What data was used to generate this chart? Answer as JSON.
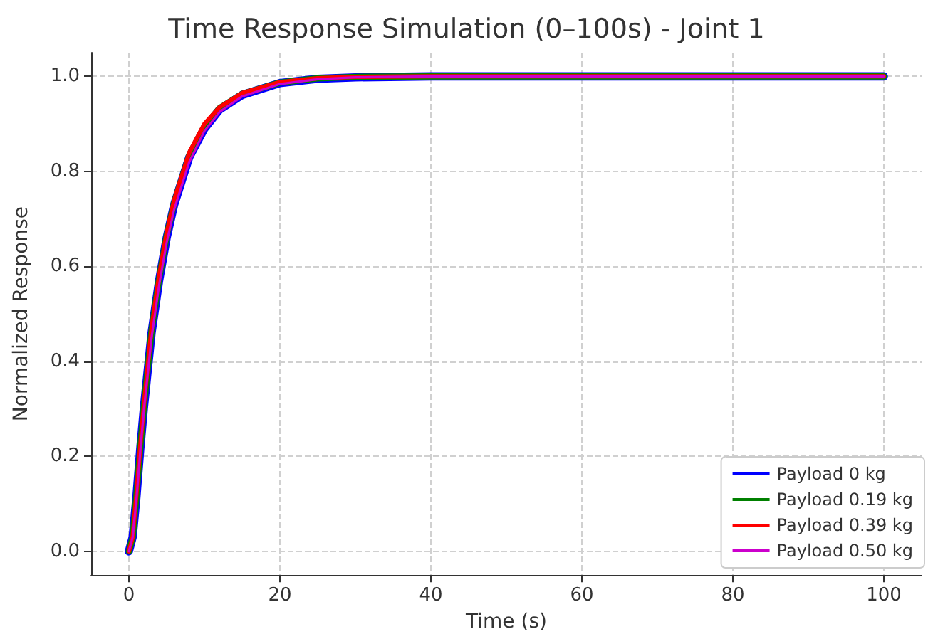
{
  "chart_data": {
    "type": "line",
    "title": "Time Response Simulation (0–100s) - Joint 1",
    "xlabel": "Time (s)",
    "ylabel": "Normalized Response",
    "x": [
      0,
      0.5,
      1,
      1.5,
      2,
      3,
      4,
      5,
      6,
      8,
      10,
      12,
      15,
      20,
      25,
      30,
      40,
      60,
      80,
      100
    ],
    "series": [
      {
        "name": "Payload 0 kg",
        "color": "#0000ff",
        "values": [
          0,
          0.03,
          0.115,
          0.215,
          0.305,
          0.46,
          0.57,
          0.66,
          0.73,
          0.83,
          0.89,
          0.93,
          0.961,
          0.986,
          0.995,
          0.998,
          1,
          1,
          1,
          1
        ]
      },
      {
        "name": "Payload 0.19 kg",
        "color": "#008000",
        "values": [
          0,
          0.03,
          0.118,
          0.218,
          0.308,
          0.465,
          0.575,
          0.665,
          0.735,
          0.835,
          0.895,
          0.933,
          0.963,
          0.987,
          0.996,
          0.999,
          1,
          1,
          1,
          1
        ]
      },
      {
        "name": "Payload 0.39 kg",
        "color": "#ff0000",
        "values": [
          0,
          0.03,
          0.12,
          0.22,
          0.31,
          0.47,
          0.58,
          0.67,
          0.74,
          0.84,
          0.9,
          0.935,
          0.965,
          0.988,
          0.996,
          0.999,
          1,
          1,
          1,
          1
        ]
      },
      {
        "name": "Payload 0.50 kg",
        "color": "#cc00cc",
        "values": [
          0,
          0.03,
          0.11,
          0.21,
          0.3,
          0.45,
          0.56,
          0.65,
          0.72,
          0.82,
          0.885,
          0.925,
          0.958,
          0.984,
          0.994,
          0.998,
          1,
          1,
          1,
          1
        ]
      }
    ],
    "xlim": [
      -5,
      105
    ],
    "xticks": [
      0,
      20,
      40,
      60,
      80,
      100
    ],
    "ylim": [
      -0.05,
      1.05
    ],
    "yticks": [
      {
        "value": 0,
        "label": "0.0"
      },
      {
        "value": 0.2,
        "label": "0.2"
      },
      {
        "value": 0.4,
        "label": "0.4"
      },
      {
        "value": 0.6,
        "label": "0.6"
      },
      {
        "value": 0.8,
        "label": "0.8"
      },
      {
        "value": 1,
        "label": "1.0"
      }
    ],
    "grid": true,
    "legend": "bottom right",
    "marker": "none",
    "line_style": "solid"
  }
}
